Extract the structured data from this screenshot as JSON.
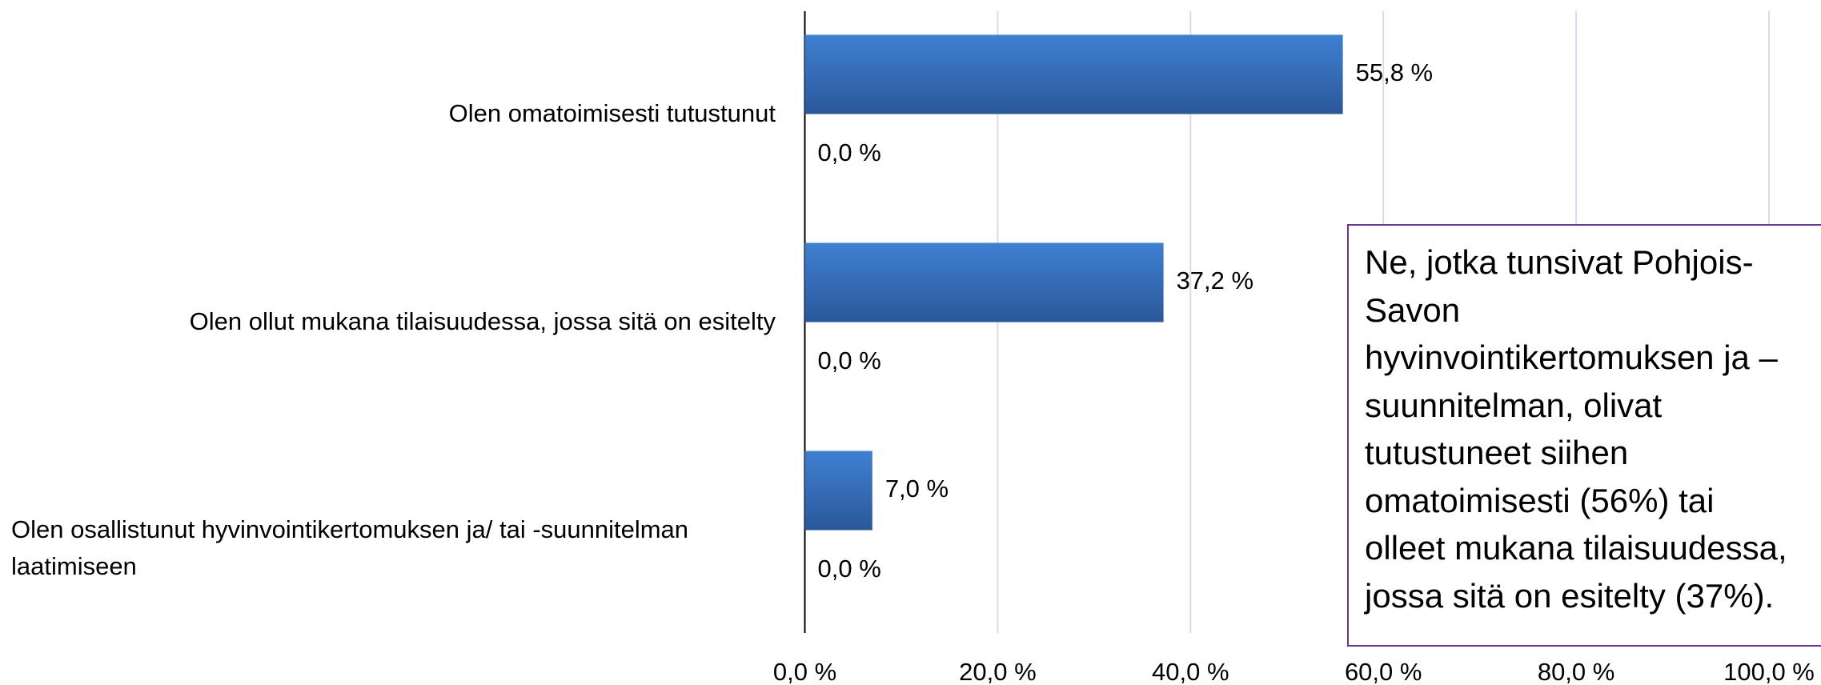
{
  "chart_data": {
    "type": "hbar",
    "categories": [
      "Olen omatoimisesti tutustunut",
      "Olen ollut mukana tilaisuudessa, jossa sitä on esitelty",
      "Olen osallistunut hyvinvointikertomuksen ja/ tai -suunnitelman laatimiseen"
    ],
    "series": [
      {
        "color": "#3a78c8",
        "values": [
          55.8,
          37.2,
          7.0
        ],
        "value_labels": [
          "55,8 %",
          "37,2 %",
          "7,0 %"
        ]
      },
      {
        "color": "#c0504d",
        "values": [
          0,
          0,
          0
        ],
        "value_labels": [
          "0,0 %",
          "0,0 %",
          "0,0 %"
        ]
      }
    ],
    "xlim": [
      0,
      100
    ],
    "xticks": [
      {
        "value": 0,
        "label": "0,0 %"
      },
      {
        "value": 20,
        "label": "20,0 %"
      },
      {
        "value": 40,
        "label": "40,0 %"
      },
      {
        "value": 60,
        "label": "60,0 %"
      },
      {
        "value": 80,
        "label": "80,0 %"
      },
      {
        "value": 100,
        "label": "100,0 %"
      }
    ],
    "grid": true,
    "annotation_lines": [
      "Ne, jotka tunsivat Pohjois-",
      "Savon",
      "hyvinvointikertomuksen ja –",
      "suunnitelman, olivat",
      "tutustuneet siihen",
      "omatoimisesti (56%) tai",
      "olleet mukana tilaisuudessa,",
      "jossa sitä on esitelty (37%)."
    ]
  }
}
